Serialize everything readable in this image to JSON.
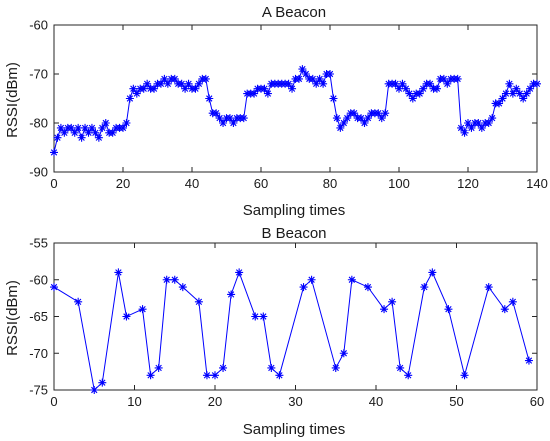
{
  "chart_data": [
    {
      "type": "line",
      "title": "A Beacon",
      "xlabel": "Sampling times",
      "ylabel": "RSSI(dBm)",
      "xlim": [
        0,
        140
      ],
      "ylim": [
        -90,
        -60
      ],
      "xticks": [
        0,
        20,
        40,
        60,
        80,
        100,
        120,
        140
      ],
      "yticks": [
        -90,
        -80,
        -70,
        -60
      ],
      "grid": false,
      "marker": "asterisk",
      "line_color": "#0000ff",
      "series": [
        {
          "x": [
            0,
            1,
            2,
            3,
            4,
            5,
            6,
            7,
            8,
            9,
            10,
            11,
            12,
            13,
            14,
            15,
            16,
            17,
            18,
            19,
            20,
            21,
            22,
            23,
            24,
            25,
            26,
            27,
            28,
            29,
            30,
            31,
            32,
            33,
            34,
            35,
            36,
            37,
            38,
            39,
            40,
            41,
            42,
            43,
            44,
            45,
            46,
            47,
            48,
            49,
            50,
            51,
            52,
            53,
            54,
            55,
            56,
            57,
            58,
            59,
            60,
            61,
            62,
            63,
            64,
            65,
            66,
            67,
            68,
            69,
            70,
            71,
            72,
            73,
            74,
            75,
            76,
            77,
            78,
            79,
            80,
            81,
            82,
            83,
            84,
            85,
            86,
            87,
            88,
            89,
            90,
            91,
            92,
            93,
            94,
            95,
            96,
            97,
            98,
            99,
            100,
            101,
            102,
            103,
            104,
            105,
            106,
            107,
            108,
            109,
            110,
            111,
            112,
            113,
            114,
            115,
            116,
            117,
            118,
            119,
            120,
            121,
            122,
            123,
            124,
            125,
            126,
            127,
            128,
            129,
            130,
            131,
            132,
            133,
            134,
            135,
            136,
            137,
            138,
            139,
            140
          ],
          "y": [
            -86,
            -83,
            -81,
            -82,
            -81,
            -81,
            -82,
            -81,
            -83,
            -81,
            -82,
            -81,
            -82,
            -83,
            -81,
            -80,
            -82,
            -82,
            -81,
            -81,
            -81,
            -80,
            -75,
            -73,
            -74,
            -73,
            -73,
            -72,
            -73,
            -73,
            -72,
            -72,
            -71,
            -72,
            -71,
            -71,
            -72,
            -72,
            -73,
            -72,
            -73,
            -73,
            -72,
            -71,
            -71,
            -75,
            -78,
            -78,
            -79,
            -80,
            -79,
            -79,
            -80,
            -79,
            -79,
            -79,
            -74,
            -74,
            -74,
            -73,
            -73,
            -73,
            -74,
            -72,
            -72,
            -72,
            -72,
            -72,
            -72,
            -73,
            -71,
            -71,
            -69,
            -70,
            -71,
            -71,
            -72,
            -71,
            -72,
            -70,
            -70,
            -75,
            -79,
            -81,
            -80,
            -79,
            -78,
            -78,
            -79,
            -79,
            -80,
            -79,
            -78,
            -78,
            -78,
            -79,
            -78,
            -72,
            -72,
            -72,
            -73,
            -72,
            -73,
            -74,
            -75,
            -74,
            -74,
            -73,
            -72,
            -72,
            -73,
            -73,
            -71,
            -71,
            -72,
            -71,
            -71,
            -71,
            -81,
            -82,
            -80,
            -81,
            -80,
            -80,
            -81,
            -80,
            -80,
            -79,
            -76,
            -76,
            -75,
            -74,
            -72,
            -74,
            -73,
            -74,
            -75,
            -74,
            -73,
            -72,
            -72
          ]
        }
      ]
    },
    {
      "type": "line",
      "title": "B Beacon",
      "xlabel": "Sampling times",
      "ylabel": "RSSI(dBm)",
      "xlim": [
        0,
        60
      ],
      "ylim": [
        -75,
        -55
      ],
      "xticks": [
        0,
        10,
        20,
        30,
        40,
        50,
        60
      ],
      "yticks": [
        -75,
        -70,
        -65,
        -60,
        -55
      ],
      "grid": false,
      "marker": "asterisk",
      "line_color": "#0000ff",
      "series": [
        {
          "x": [
            0,
            3,
            5,
            6,
            8,
            9,
            11,
            12,
            13,
            14,
            15,
            16,
            18,
            19,
            20,
            21,
            22,
            23,
            25,
            26,
            27,
            28,
            31,
            32,
            35,
            36,
            37,
            39,
            41,
            42,
            43,
            44,
            46,
            47,
            49,
            51,
            54,
            56,
            57,
            59
          ],
          "y": [
            -61,
            -63,
            -75,
            -74,
            -59,
            -65,
            -64,
            -73,
            -72,
            -60,
            -60,
            -61,
            -63,
            -73,
            -73,
            -72,
            -62,
            -59,
            -65,
            -65,
            -72,
            -73,
            -61,
            -60,
            -72,
            -70,
            -60,
            -61,
            -64,
            -63,
            -72,
            -73,
            -61,
            -59,
            -64,
            -73,
            -61,
            -64,
            -63,
            -71
          ]
        }
      ]
    }
  ]
}
